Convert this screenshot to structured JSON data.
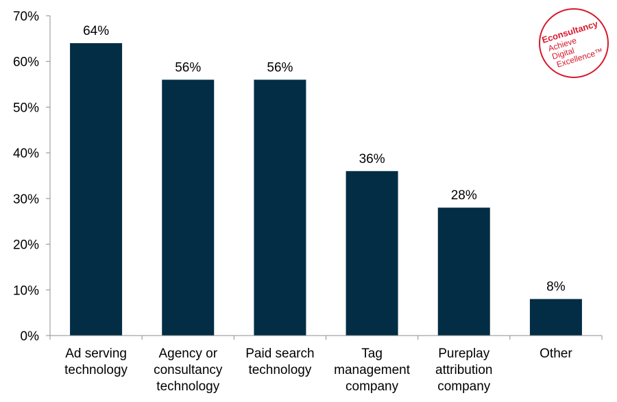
{
  "chart_data": {
    "type": "bar",
    "title": "",
    "xlabel": "",
    "ylabel": "",
    "categories": [
      [
        "Ad serving",
        "technology"
      ],
      [
        "Agency or",
        "consultancy",
        "technology"
      ],
      [
        "Paid search",
        "technology"
      ],
      [
        "Tag",
        "management",
        "company"
      ],
      [
        "Pureplay",
        "attribution",
        "company"
      ],
      [
        "Other"
      ]
    ],
    "values": [
      64,
      56,
      56,
      36,
      28,
      8
    ],
    "data_labels": [
      "64%",
      "56%",
      "56%",
      "36%",
      "28%",
      "8%"
    ],
    "ylim": [
      0,
      70
    ],
    "yticks": [
      0,
      10,
      20,
      30,
      40,
      50,
      60,
      70
    ],
    "ytick_labels": [
      "0%",
      "10%",
      "20%",
      "30%",
      "40%",
      "50%",
      "60%",
      "70%"
    ],
    "grid": false,
    "bar_color": "#032d45"
  },
  "logo": {
    "brand": "Econsultancy",
    "lines": [
      "Achieve",
      "Digital",
      "Excellence™"
    ],
    "color": "#d7182a"
  }
}
